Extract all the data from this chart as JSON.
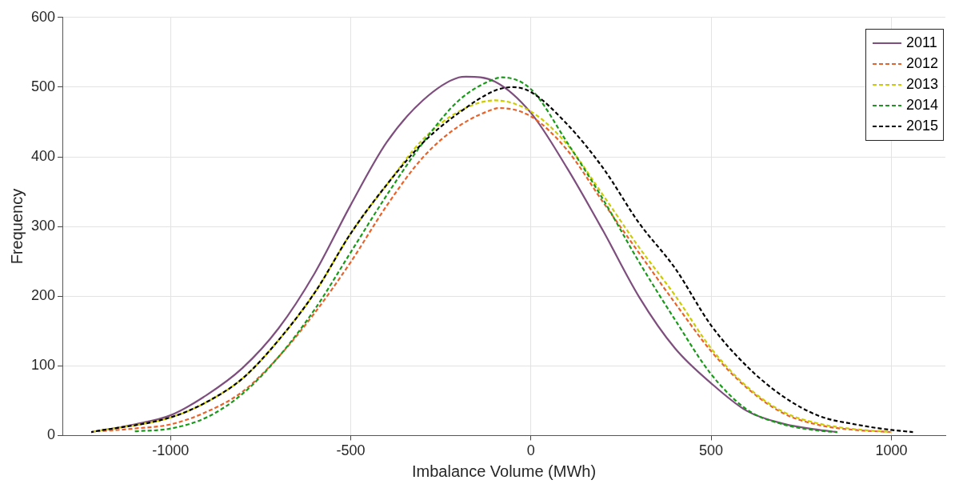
{
  "chart_data": {
    "type": "line",
    "xlabel": "Imbalance Volume (MWh)",
    "ylabel": "Frequency",
    "xlim": [
      -1300,
      1150
    ],
    "xticks": [
      -1000,
      -500,
      0,
      500,
      1000
    ],
    "ylim": [
      0,
      600
    ],
    "yticks": [
      0,
      100,
      200,
      300,
      400,
      500,
      600
    ],
    "grid": true,
    "legend": "top right",
    "marker": "none",
    "series": [
      {
        "name": "2011",
        "color": "#7e4f7e",
        "line_style": "solid",
        "x": [
          -1220,
          -1100,
          -1000,
          -900,
          -800,
          -700,
          -600,
          -500,
          -400,
          -300,
          -200,
          -180,
          -100,
          0,
          100,
          200,
          300,
          400,
          500,
          600,
          700,
          800,
          850
        ],
        "values": [
          5,
          16,
          29,
          58,
          97,
          154,
          233,
          331,
          421,
          481,
          514,
          515,
          508,
          463,
          384,
          294,
          199,
          125,
          75,
          35,
          17,
          8,
          5
        ]
      },
      {
        "name": "2012",
        "color": "#e8622a",
        "line_style": "dashed",
        "x": [
          -1200,
          -1100,
          -1000,
          -900,
          -800,
          -700,
          -600,
          -500,
          -400,
          -300,
          -200,
          -100,
          -90,
          0,
          100,
          200,
          300,
          400,
          500,
          600,
          700,
          800,
          900,
          1000
        ],
        "values": [
          6,
          10,
          16,
          34,
          63,
          113,
          176,
          249,
          330,
          399,
          444,
          469,
          470,
          458,
          410,
          335,
          262,
          190,
          121,
          68,
          32,
          15,
          8,
          5
        ]
      },
      {
        "name": "2013",
        "color": "#cccc00",
        "line_style": "dashed",
        "x": [
          -1220,
          -1000,
          -900,
          -800,
          -700,
          -600,
          -500,
          -400,
          -300,
          -200,
          -100,
          0,
          100,
          200,
          300,
          400,
          500,
          600,
          700,
          800,
          900,
          1000
        ],
        "values": [
          5,
          26,
          48,
          82,
          137,
          205,
          290,
          360,
          425,
          465,
          481,
          465,
          418,
          345,
          270,
          201,
          125,
          70,
          34,
          17,
          9,
          5
        ]
      },
      {
        "name": "2014",
        "color": "#1a9a1a",
        "line_style": "dashed",
        "x": [
          -1100,
          -1000,
          -900,
          -800,
          -700,
          -600,
          -500,
          -400,
          -300,
          -200,
          -100,
          -80,
          0,
          100,
          200,
          300,
          400,
          500,
          600,
          700,
          800,
          850
        ],
        "values": [
          6,
          10,
          26,
          60,
          113,
          181,
          263,
          345,
          420,
          481,
          512,
          514,
          497,
          421,
          339,
          249,
          166,
          88,
          37,
          16,
          7,
          5
        ]
      },
      {
        "name": "2015",
        "color": "#000000",
        "line_style": "dashed",
        "x": [
          -1220,
          -1000,
          -900,
          -800,
          -700,
          -600,
          -500,
          -400,
          -300,
          -200,
          -100,
          -50,
          0,
          100,
          200,
          300,
          400,
          500,
          600,
          700,
          800,
          900,
          1000,
          1060
        ],
        "values": [
          5,
          26,
          48,
          82,
          137,
          205,
          290,
          360,
          420,
          463,
          495,
          500,
          493,
          447,
          384,
          305,
          240,
          158,
          99,
          56,
          28,
          16,
          8,
          5
        ]
      }
    ]
  }
}
